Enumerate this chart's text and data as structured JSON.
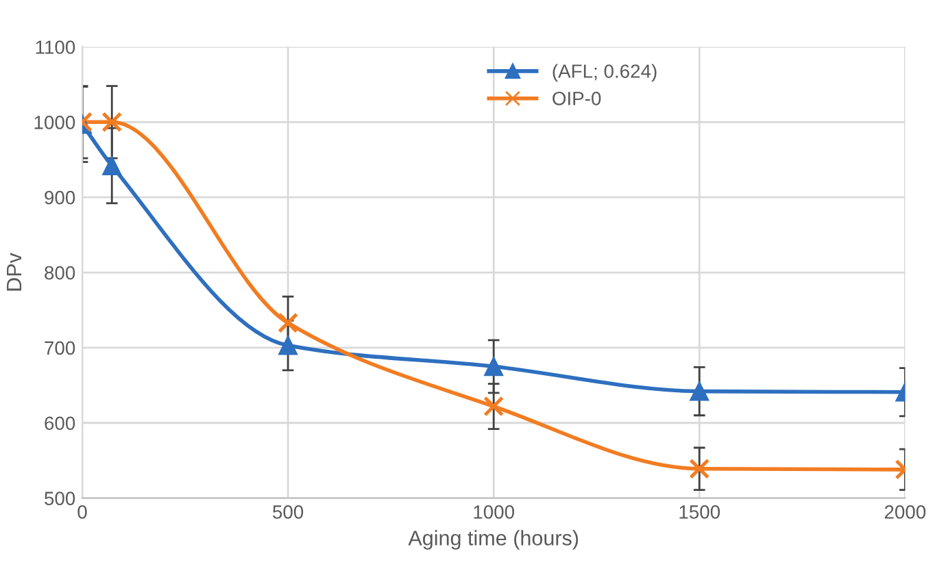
{
  "chart_data": {
    "type": "line",
    "xlabel": "Aging time (hours)",
    "ylabel": "DPv",
    "x": [
      0,
      72,
      500,
      1000,
      1500,
      2000
    ],
    "series": [
      {
        "name": "(AFL; 0.624)",
        "color": "#2e6fbf",
        "marker": "triangle",
        "values": [
          997,
          942,
          703,
          675,
          642,
          641
        ],
        "errors": [
          50,
          50,
          33,
          35,
          32,
          32
        ]
      },
      {
        "name": "OIP-0",
        "color": "#f27c22",
        "marker": "cross",
        "values": [
          1000,
          1000,
          733,
          622,
          539,
          538
        ],
        "errors": [
          48,
          48,
          35,
          30,
          28,
          27
        ]
      }
    ],
    "xlim": [
      0,
      2000
    ],
    "xticks": [
      0,
      500,
      1000,
      1500,
      2000
    ],
    "ylim": [
      500,
      1100
    ],
    "yticks": [
      500,
      600,
      700,
      800,
      900,
      1000,
      1100
    ],
    "grid": true,
    "legend": "top right"
  }
}
